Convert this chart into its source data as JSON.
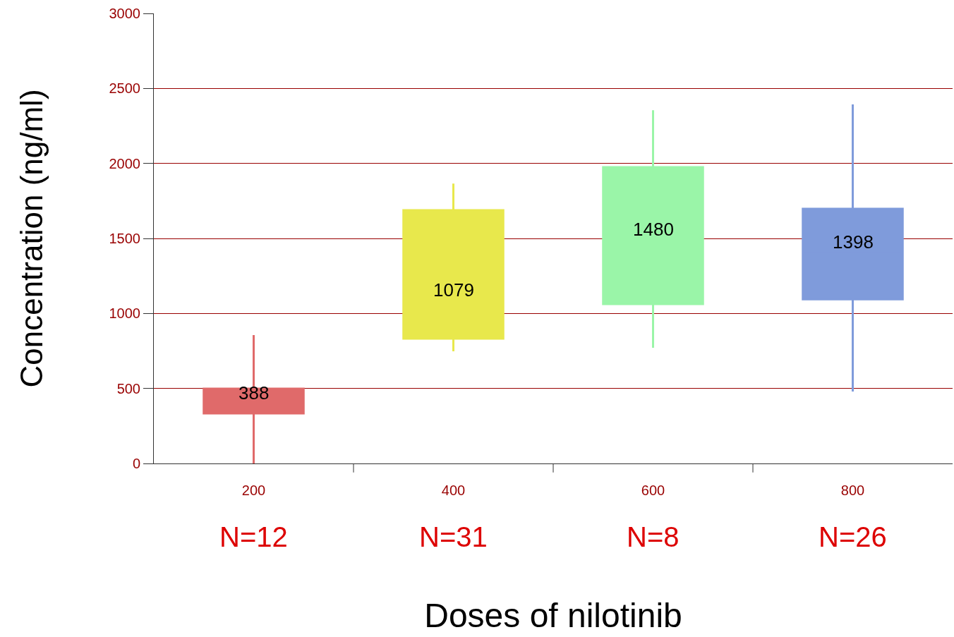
{
  "chart_data": {
    "type": "box",
    "xlabel": "Doses of nilotinib",
    "ylabel": "Concentration (ng/ml)",
    "categories": [
      "200",
      "400",
      "600",
      "800"
    ],
    "boxes": [
      {
        "low": 0,
        "q1": 334,
        "median": 388,
        "q3": 498,
        "high": 856
      },
      {
        "low": 748,
        "q1": 832,
        "median": 1079,
        "q3": 1688,
        "high": 1866
      },
      {
        "low": 771,
        "q1": 1063,
        "median": 1480,
        "q3": 1975,
        "high": 2355
      },
      {
        "low": 480,
        "q1": 1095,
        "median": 1398,
        "q3": 1697,
        "high": 2393
      }
    ],
    "colors": [
      "#e06a6a",
      "#e8e84c",
      "#9af5a8",
      "#7f9bdb"
    ],
    "ylim": [
      0,
      3000
    ],
    "yticks": [
      0,
      500,
      1000,
      1500,
      2000,
      2500,
      3000
    ],
    "grid": "y",
    "annotations": [
      "N=12",
      "N=31",
      "N=8",
      "N=26",
      {
        "text": "388",
        "x": "200",
        "y": 388
      },
      {
        "text": "1079",
        "x": "400",
        "y": 1079
      },
      {
        "text": "1480",
        "x": "600",
        "y": 1480
      },
      {
        "text": "1398",
        "x": "800",
        "y": 1398
      }
    ]
  }
}
